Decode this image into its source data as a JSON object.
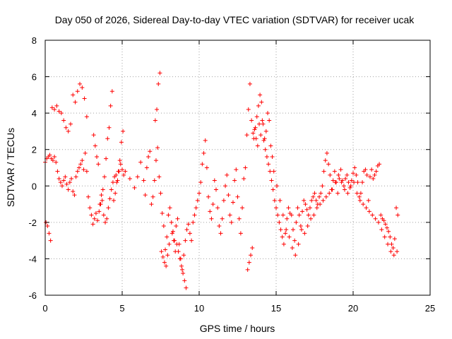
{
  "chart_data": {
    "type": "scatter",
    "title": "Day 050 of 2026, Sidereal Day-to-day VTEC variation (SDTVAR) for receiver ucak",
    "xlabel": "GPS time / hours",
    "ylabel": "SDTVAR / TECUs",
    "xlim": [
      0,
      25
    ],
    "ylim": [
      -6,
      8
    ],
    "xticks": [
      "0",
      "5",
      "10",
      "15",
      "20",
      "25"
    ],
    "yticks": [
      "-6",
      "-4",
      "-2",
      "0",
      "2",
      "4",
      "6",
      "8"
    ],
    "grid": true,
    "marker": "plus",
    "color": "#ff0000",
    "series": [
      {
        "name": "SDTVAR",
        "x": [
          0.0,
          0.1,
          0.2,
          0.3,
          0.4,
          0.5,
          0.6,
          0.7,
          0.8,
          0.9,
          1.0,
          1.1,
          1.2,
          1.3,
          1.4,
          1.5,
          1.6,
          1.7,
          1.8,
          1.9,
          2.0,
          2.1,
          2.2,
          2.3,
          2.4,
          2.5,
          2.6,
          2.7,
          2.8,
          2.9,
          3.0,
          3.1,
          3.2,
          3.3,
          3.4,
          3.5,
          3.6,
          3.7,
          3.8,
          3.9,
          4.0,
          4.1,
          4.2,
          4.3,
          4.4,
          4.5,
          4.6,
          4.7,
          4.8,
          4.9,
          5.0,
          5.1,
          5.2,
          5.5,
          5.8,
          6.0,
          6.2,
          6.4,
          6.5,
          6.6,
          6.7,
          6.8,
          6.9,
          7.0,
          7.1,
          7.2,
          7.3,
          7.4,
          7.5,
          7.6,
          7.7,
          7.8,
          7.9,
          8.0,
          8.1,
          8.2,
          8.3,
          8.4,
          8.5,
          8.6,
          8.7,
          8.8,
          8.9,
          9.0,
          9.1,
          9.2,
          9.3,
          9.4,
          9.5,
          9.6,
          9.7,
          9.8,
          9.9,
          10.0,
          10.1,
          10.2,
          10.3,
          10.4,
          10.5,
          10.6,
          10.7,
          10.8,
          10.9,
          11.0,
          11.1,
          11.2,
          11.3,
          11.4,
          11.5,
          11.6,
          11.7,
          11.8,
          11.9,
          12.0,
          12.1,
          12.2,
          12.3,
          12.4,
          12.5,
          12.6,
          12.7,
          12.8,
          12.9,
          13.0,
          13.1,
          13.2,
          13.3,
          13.4,
          13.5,
          13.6,
          13.7,
          13.8,
          13.9,
          14.0,
          14.1,
          14.2,
          14.3,
          14.4,
          14.5,
          14.6,
          14.7,
          14.8,
          14.9,
          15.0,
          15.1,
          15.2,
          15.3,
          15.4,
          15.5,
          15.6,
          15.7,
          15.8,
          15.9,
          16.0,
          16.1,
          16.2,
          16.3,
          16.4,
          16.5,
          16.6,
          16.7,
          16.8,
          16.9,
          17.0,
          17.1,
          17.2,
          17.3,
          17.4,
          17.5,
          17.6,
          17.7,
          17.8,
          17.9,
          18.0,
          18.1,
          18.2,
          18.3,
          18.4,
          18.5,
          18.6,
          18.7,
          18.8,
          18.9,
          19.0,
          19.1,
          19.2,
          19.3,
          19.4,
          19.5,
          19.6,
          19.7,
          19.8,
          19.9,
          20.0,
          20.1,
          20.2,
          20.3,
          20.4,
          20.5,
          20.6,
          20.7,
          20.8,
          20.9,
          21.0,
          21.1,
          21.2,
          21.3,
          21.4,
          21.5,
          21.6,
          21.7,
          21.8,
          21.9,
          22.0,
          22.1,
          22.2,
          22.3,
          22.4,
          22.5,
          22.6,
          22.7,
          22.8,
          22.9,
          0.05,
          0.15,
          0.25,
          0.35,
          0.45,
          0.6,
          0.75,
          0.9,
          1.05,
          1.2,
          1.35,
          1.5,
          1.65,
          1.8,
          1.95,
          2.1,
          2.25,
          2.4,
          2.55,
          2.7,
          3.15,
          3.25,
          3.35,
          3.45,
          3.55,
          3.65,
          3.75,
          3.85,
          3.95,
          4.05,
          4.15,
          4.25,
          4.35,
          4.45,
          4.55,
          4.65,
          4.75,
          4.85,
          4.95,
          5.05,
          7.15,
          7.25,
          7.35,
          7.45,
          7.55,
          7.65,
          7.75,
          7.85,
          7.95,
          8.05,
          8.25,
          8.35,
          8.45,
          8.55,
          8.65,
          8.75,
          8.85,
          8.95,
          9.05,
          9.15,
          13.15,
          13.25,
          13.35,
          13.45,
          13.55,
          13.65,
          13.75,
          13.85,
          13.95,
          14.05,
          14.15,
          14.25,
          14.35,
          14.45,
          14.55,
          14.65,
          14.75,
          14.85,
          15.05,
          15.25,
          15.45,
          15.65,
          15.85,
          16.05,
          16.25,
          16.45,
          16.65,
          16.85,
          17.05,
          17.25,
          17.45,
          17.65,
          17.85,
          18.05,
          18.25,
          18.45,
          18.65,
          18.85,
          19.05,
          19.25,
          19.45,
          19.65,
          19.85,
          20.05,
          20.25,
          20.45,
          20.65,
          20.85,
          21.05,
          21.25,
          21.45,
          21.65,
          21.85,
          22.05,
          22.25,
          22.45,
          22.65,
          22.85
        ],
        "y": [
          1.3,
          1.5,
          1.6,
          1.7,
          1.5,
          1.4,
          1.6,
          1.3,
          0.8,
          0.4,
          0.2,
          0.0,
          0.3,
          0.5,
          0.1,
          -0.2,
          0.2,
          0.4,
          -0.3,
          -0.5,
          0.5,
          0.8,
          1.0,
          1.2,
          1.4,
          0.9,
          1.8,
          0.8,
          -0.6,
          -1.2,
          -1.6,
          -2.1,
          -1.8,
          -1.5,
          -1.9,
          -1.4,
          -1.0,
          -0.8,
          -1.6,
          -2.0,
          -1.8,
          -1.2,
          -0.7,
          -0.2,
          0.2,
          0.5,
          0.6,
          0.3,
          0.8,
          1.2,
          0.9,
          0.6,
          0.8,
          0.4,
          -0.1,
          0.5,
          1.3,
          0.3,
          -0.5,
          1.0,
          1.6,
          1.9,
          -1.0,
          -0.6,
          0.3,
          1.4,
          2.1,
          0.5,
          -0.4,
          -1.5,
          -2.2,
          -3.5,
          -2.8,
          -1.6,
          -1.2,
          -2.0,
          -2.5,
          -3.0,
          -2.2,
          -1.8,
          -3.2,
          -4.0,
          -4.6,
          -3.8,
          -3.0,
          -2.4,
          -2.1,
          -2.6,
          -3.0,
          -2.0,
          -1.6,
          -1.2,
          -0.8,
          -0.4,
          0.2,
          1.2,
          1.8,
          2.5,
          1.0,
          -0.6,
          -1.4,
          -1.8,
          -1.0,
          0.3,
          -0.2,
          -1.2,
          -2.2,
          -2.6,
          -1.8,
          -0.8,
          0.0,
          0.6,
          -0.5,
          -1.6,
          -2.0,
          -0.9,
          0.3,
          0.9,
          -0.6,
          -1.8,
          -2.6,
          -1.2,
          0.4,
          1.0,
          2.8,
          4.2,
          5.6,
          3.6,
          2.9,
          3.1,
          2.6,
          2.2,
          3.4,
          2.8,
          3.6,
          2.5,
          2.0,
          1.6,
          1.2,
          0.8,
          0.3,
          -0.2,
          -0.8,
          -1.2,
          -1.6,
          -2.0,
          -2.4,
          -2.8,
          -3.2,
          -2.6,
          -1.8,
          -1.2,
          -1.5,
          -1.6,
          -2.4,
          -3.0,
          -2.0,
          -1.2,
          -1.6,
          -2.2,
          -1.4,
          -0.8,
          -1.0,
          -1.3,
          -1.6,
          -1.2,
          -0.8,
          -0.6,
          -0.4,
          -0.8,
          -1.0,
          -0.6,
          -0.4,
          0.0,
          0.8,
          1.4,
          1.8,
          1.2,
          0.6,
          -0.2,
          0.3,
          0.8,
          0.2,
          -0.4,
          0.4,
          0.9,
          0.3,
          0.0,
          0.4,
          0.6,
          0.2,
          -0.1,
          0.3,
          0.7,
          1.0,
          0.6,
          0.2,
          -0.6,
          -0.4,
          0.2,
          0.8,
          0.9,
          0.6,
          -0.8,
          0.5,
          0.9,
          0.4,
          0.6,
          0.8,
          1.1,
          1.2,
          -1.6,
          -1.8,
          -1.9,
          -2.1,
          -2.3,
          -2.5,
          -2.8,
          -3.2,
          -3.4,
          -2.9,
          -1.2,
          -1.6,
          -2.0,
          -2.2,
          -2.6,
          -3.0,
          4.3,
          4.2,
          4.4,
          4.1,
          4.0,
          3.6,
          3.2,
          3.0,
          3.4,
          5.0,
          4.6,
          5.2,
          5.6,
          5.4,
          4.8,
          3.8,
          2.8,
          2.2,
          1.6,
          1.2,
          -1.0,
          -0.5,
          -0.2,
          0.5,
          1.5,
          2.6,
          3.2,
          4.4,
          5.2,
          -0.8,
          -0.4,
          0.2,
          0.8,
          1.4,
          2.4,
          3.0,
          3.6,
          4.2,
          5.6,
          6.2,
          -3.6,
          -3.9,
          -4.2,
          -4.4,
          -3.8,
          -3.2,
          -2.6,
          -3.0,
          -3.6,
          -3.2,
          -3.6,
          -4.0,
          -4.4,
          -4.8,
          -5.2,
          -5.6,
          -4.6,
          -4.2,
          -3.8,
          -3.4,
          2.6,
          3.2,
          3.8,
          4.4,
          5.0,
          4.6,
          3.4,
          2.6,
          3.0,
          4.0,
          3.6,
          2.2,
          1.6,
          0.8,
          0.0,
          -0.8,
          -1.6,
          -2.4,
          -2.8,
          -3.4,
          -3.8,
          -3.2,
          -2.4,
          -2.6,
          -2.2,
          -1.8,
          -1.6,
          -1.2,
          -1.0,
          -0.8,
          -0.6,
          -0.4,
          -0.2,
          0.2,
          0.6,
          0.2,
          -0.2,
          -0.4,
          0.0,
          0.2,
          -0.4,
          -0.8,
          -1.0,
          -1.2,
          -1.4,
          -1.6,
          -1.8,
          -2.0,
          -2.4,
          -2.8,
          -3.2,
          -3.6,
          -3.8,
          -3.6
        ]
      }
    ]
  }
}
